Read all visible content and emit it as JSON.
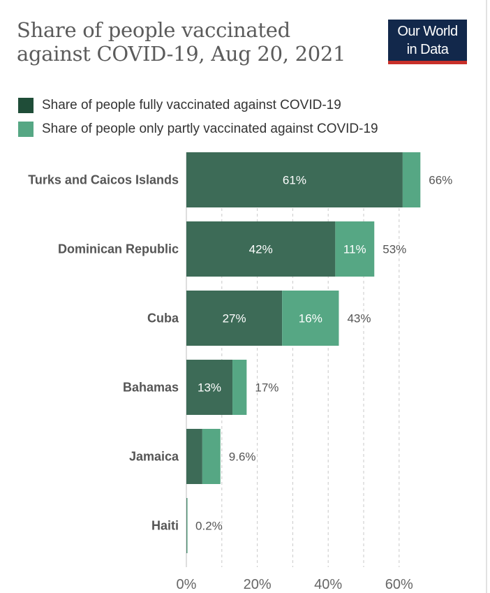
{
  "title_line1": "Share of people vaccinated",
  "title_line2": "against COVID-19, Aug 20, 2021",
  "logo": {
    "line1": "Our World",
    "line2": "in Data",
    "bg": "#12284b",
    "accent": "#c8302a"
  },
  "chart_data": {
    "type": "bar",
    "orientation": "horizontal",
    "stacked": true,
    "title": "Share of people vaccinated against COVID-19, Aug 20, 2021",
    "categories": [
      "Turks and Caicos Islands",
      "Dominican Republic",
      "Cuba",
      "Bahamas",
      "Jamaica",
      "Haiti"
    ],
    "series": [
      {
        "name": "Share of people fully vaccinated against COVID-19",
        "color": "#3d6b57",
        "values": [
          61,
          42,
          27,
          13,
          4.5,
          0.15
        ],
        "labels": [
          "61%",
          "42%",
          "27%",
          "13%",
          "",
          ""
        ]
      },
      {
        "name": "Share of people only partly vaccinated against COVID-19",
        "color": "#56a784",
        "values": [
          5,
          11,
          16,
          4,
          5.1,
          0.05
        ],
        "labels": [
          "",
          "11%",
          "16%",
          "",
          "",
          ""
        ]
      }
    ],
    "totals": [
      "66%",
      "53%",
      "43%",
      "17%",
      "9.6%",
      "0.2%"
    ],
    "xlim": [
      0,
      70
    ],
    "xticks": [
      0,
      20,
      40,
      60
    ],
    "xtick_labels": [
      "0%",
      "20%",
      "40%",
      "60%"
    ],
    "grid": "dashed-vertical",
    "legend_placement": "top"
  }
}
